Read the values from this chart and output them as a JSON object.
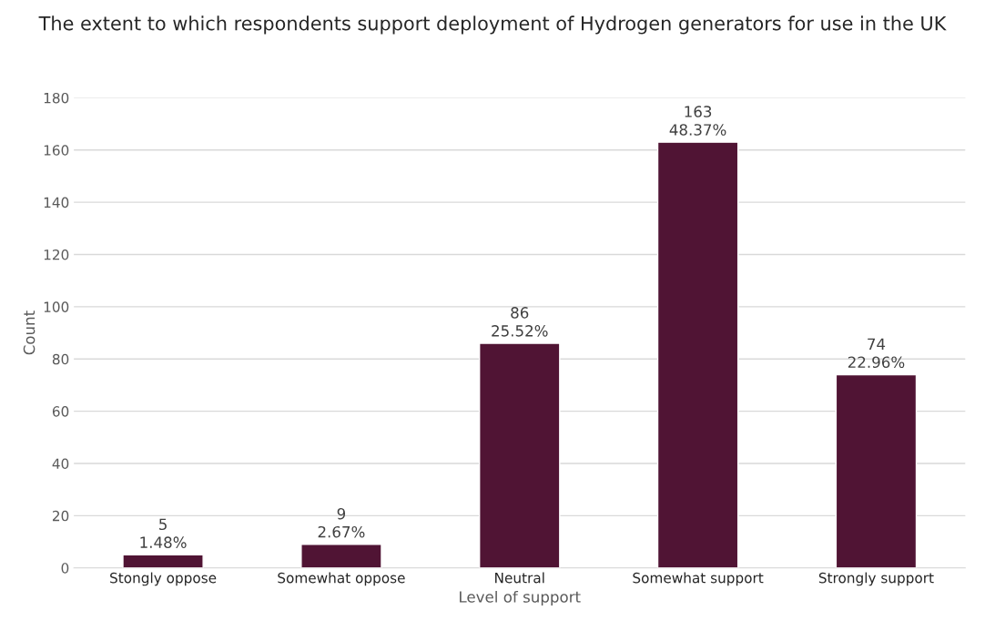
{
  "chart_data": {
    "type": "bar",
    "title": "The extent to which respondents support deployment of Hydrogen generators for use in the UK",
    "xlabel": "Level of support",
    "ylabel": "Count",
    "categories": [
      "Stongly oppose",
      "Somewhat oppose",
      "Neutral",
      "Somewhat support",
      "Strongly support"
    ],
    "values": [
      5,
      9,
      86,
      163,
      74
    ],
    "value_labels": [
      "5\n1.48%",
      "9\n2.67%",
      "86\n25.52%",
      "163\n48.37%",
      "74\n22.96%"
    ],
    "color": "#501434",
    "ylim": [
      0,
      180
    ],
    "yticks": [
      0,
      20,
      40,
      60,
      80,
      100,
      120,
      140,
      160,
      180
    ],
    "grid": "y",
    "legend": false
  }
}
